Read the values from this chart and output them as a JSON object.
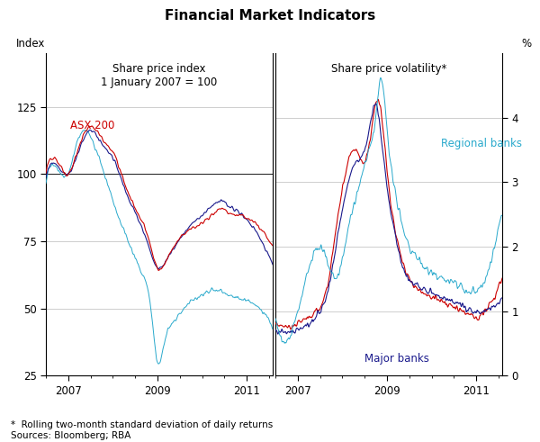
{
  "title": "Financial Market Indicators",
  "left_panel_title": "Share price index\n1 January 2007 = 100",
  "right_panel_title": "Share price volatility*",
  "left_ylabel": "Index",
  "right_ylabel": "%",
  "left_ylim": [
    25,
    145
  ],
  "right_ylim": [
    0,
    5
  ],
  "left_yticks": [
    25,
    50,
    75,
    100,
    125
  ],
  "right_yticks": [
    0,
    1,
    2,
    3,
    4
  ],
  "left_xticks_labels": [
    "2007",
    "2009",
    "2011"
  ],
  "right_xticks_labels": [
    "2007",
    "2009",
    "2011"
  ],
  "footnote": "*  Rolling two-month standard deviation of daily returns\nSources: Bloomberg; RBA",
  "colors": {
    "asx200": "#cc0000",
    "major_banks": "#1a1a8c",
    "regional_banks": "#29a9cc"
  },
  "labels": {
    "asx200": "ASX 200",
    "major_banks": "Major banks",
    "regional_banks": "Regional banks"
  },
  "background": "#ffffff",
  "grid_color": "#bbbbbb"
}
